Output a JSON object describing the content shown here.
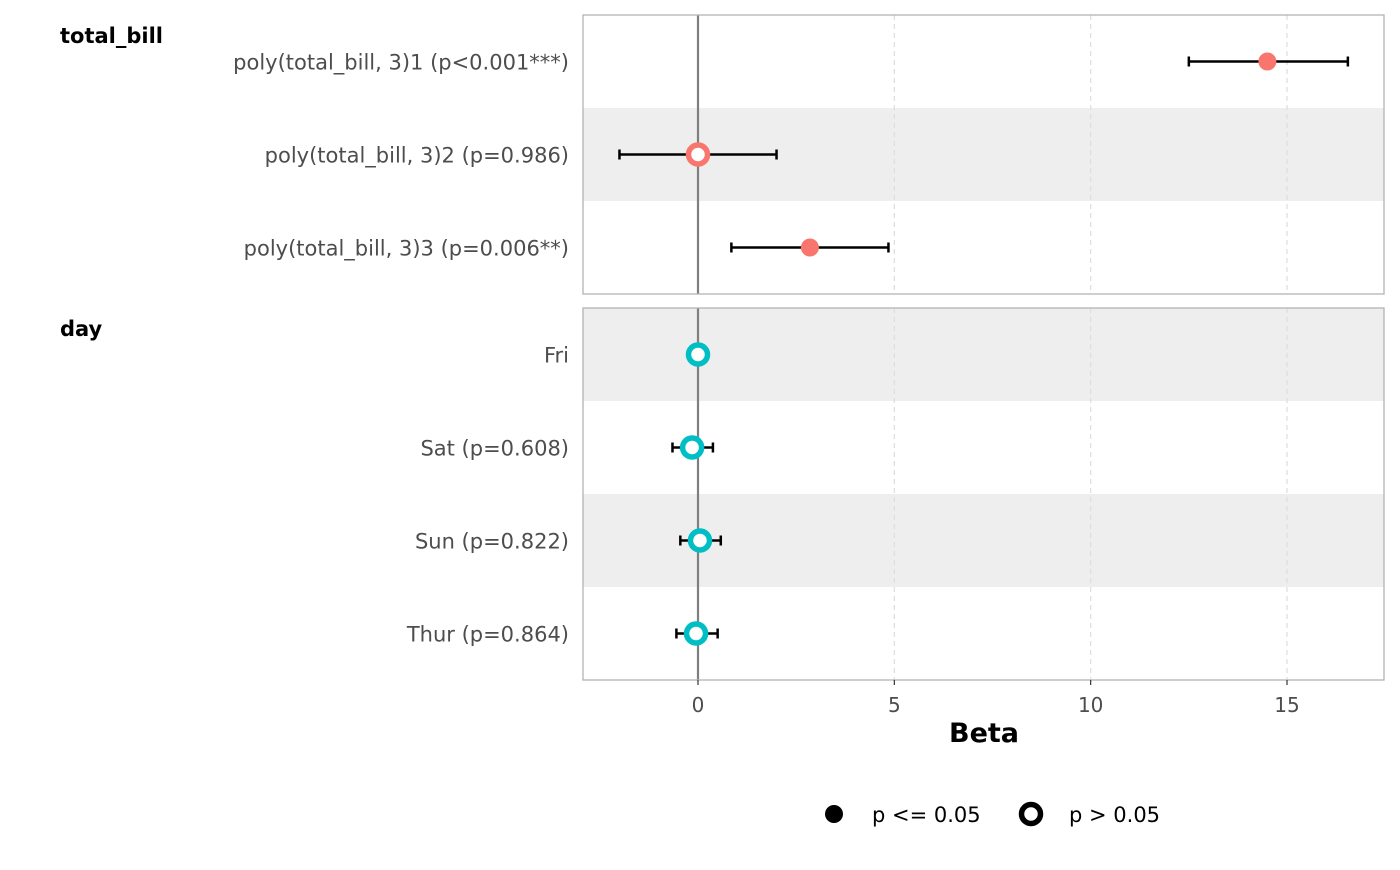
{
  "chart_data": {
    "type": "forest",
    "xlabel": "Beta",
    "xlim": [
      -2.9,
      17.5
    ],
    "xticks": [
      0,
      5,
      10,
      15
    ],
    "reference_line": 0,
    "grid": "x-major-dashed",
    "legend_position": "bottom",
    "legend": [
      {
        "label": "p <= 0.05",
        "marker": "filled-circle"
      },
      {
        "label": "p > 0.05",
        "marker": "hollow-circle"
      }
    ],
    "panels": [
      {
        "title": "total_bill",
        "color": "#F8766D",
        "rows": [
          {
            "label": "poly(total_bill, 3)1 (p<0.001***)",
            "estimate": 14.5,
            "ci_low": 12.5,
            "ci_high": 16.55,
            "significant": true
          },
          {
            "label": "poly(total_bill, 3)2 (p=0.986)",
            "estimate": 0.0,
            "ci_low": -2.0,
            "ci_high": 2.0,
            "significant": false
          },
          {
            "label": "poly(total_bill, 3)3 (p=0.006**)",
            "estimate": 2.85,
            "ci_low": 0.85,
            "ci_high": 4.85,
            "significant": true
          }
        ]
      },
      {
        "title": "day",
        "color": "#00BFC4",
        "rows": [
          {
            "label": "Fri",
            "estimate": 0.0,
            "ci_low": null,
            "ci_high": null,
            "significant": false
          },
          {
            "label": "Sat (p=0.608)",
            "estimate": -0.15,
            "ci_low": -0.65,
            "ci_high": 0.38,
            "significant": false
          },
          {
            "label": "Sun (p=0.822)",
            "estimate": 0.05,
            "ci_low": -0.45,
            "ci_high": 0.58,
            "significant": false
          },
          {
            "label": "Thur (p=0.864)",
            "estimate": -0.05,
            "ci_low": -0.55,
            "ci_high": 0.5,
            "significant": false
          }
        ]
      }
    ]
  }
}
